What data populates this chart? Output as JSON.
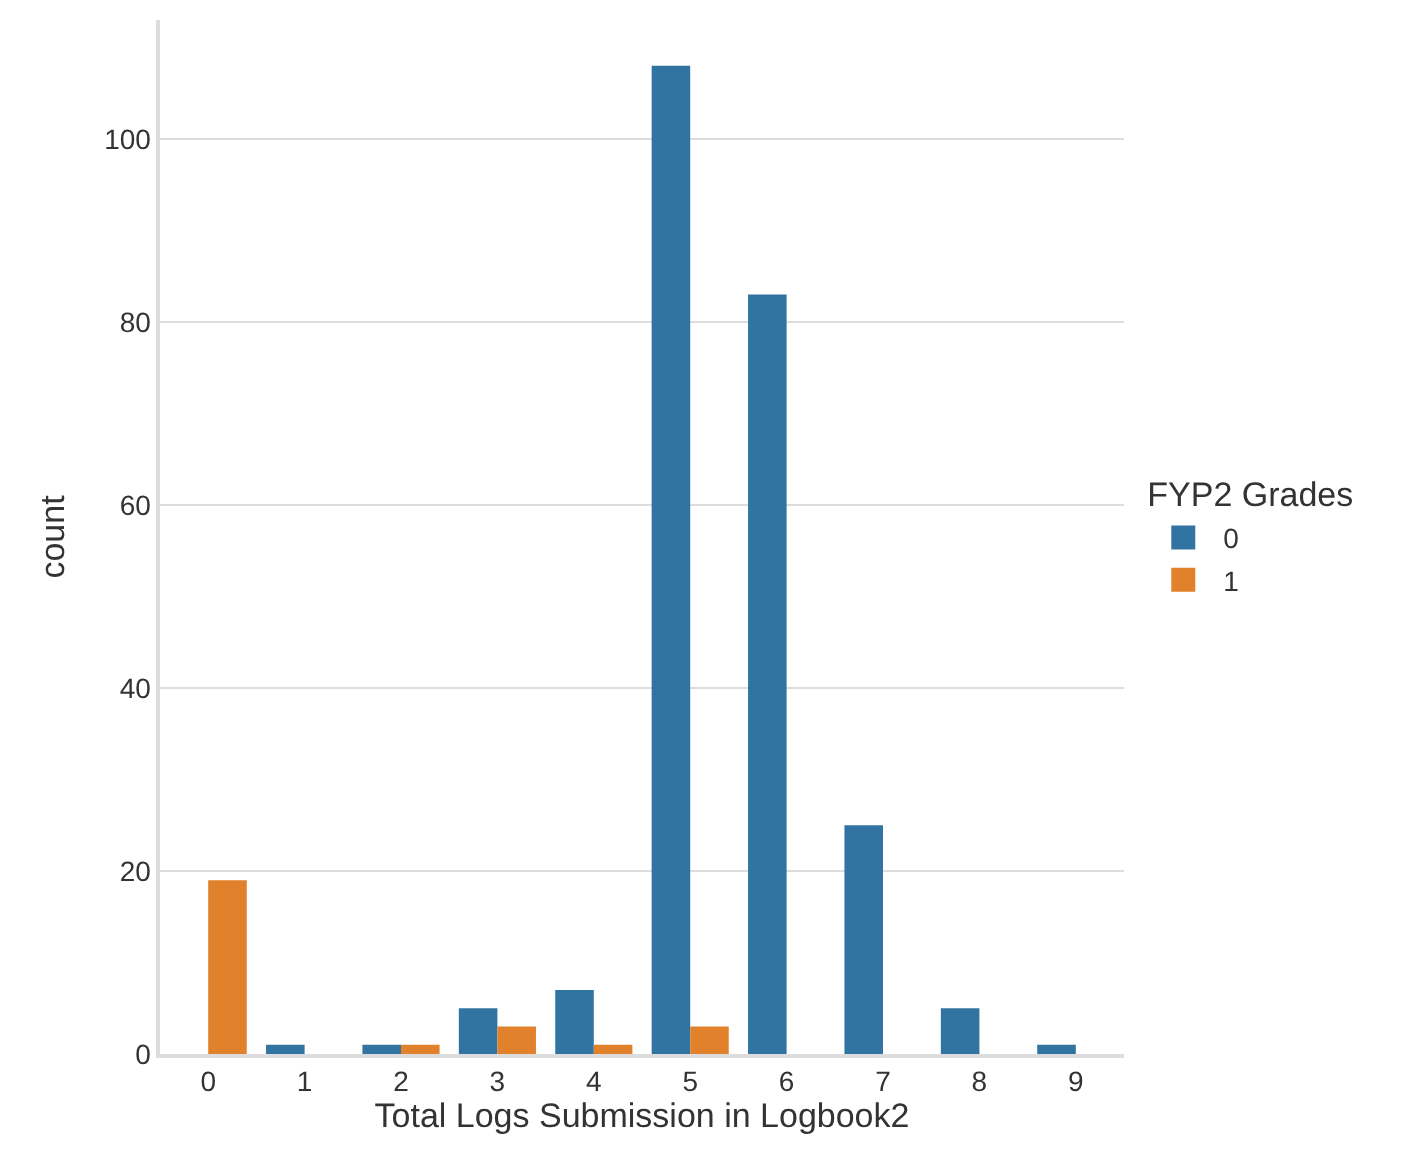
{
  "chart_data": {
    "type": "bar",
    "xlabel": "Total Logs Submission in Logbook2",
    "ylabel": "count",
    "legend_title": "FYP2 Grades",
    "categories": [
      "0",
      "1",
      "2",
      "3",
      "4",
      "5",
      "6",
      "7",
      "8",
      "9"
    ],
    "series": [
      {
        "name": "0",
        "color": "#3274a1",
        "values": [
          null,
          1,
          1,
          5,
          7,
          108,
          83,
          25,
          5,
          1
        ]
      },
      {
        "name": "1",
        "color": "#e1812c",
        "values": [
          19,
          null,
          1,
          3,
          1,
          3,
          null,
          null,
          null,
          null
        ]
      }
    ],
    "ylim": [
      0,
      113
    ],
    "yticks": [
      0,
      20,
      40,
      60,
      80,
      100
    ],
    "grid": "y",
    "legend": "right"
  }
}
